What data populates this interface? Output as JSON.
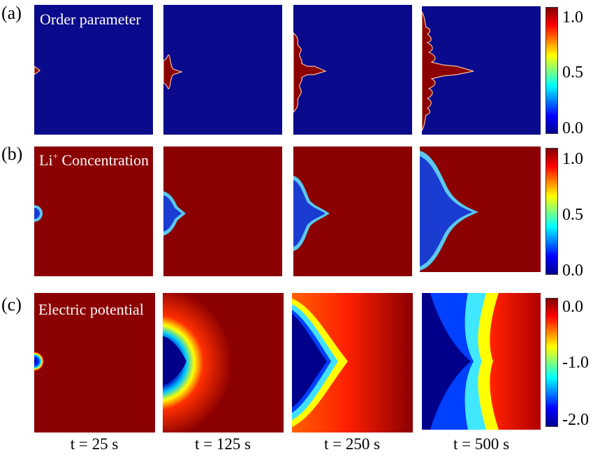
{
  "rows": [
    {
      "id": "a",
      "label": "(a)",
      "title": "Order parameter",
      "title_sup": "",
      "colorbar": {
        "ticks": [
          "1.0",
          "0.5",
          "0.0"
        ]
      }
    },
    {
      "id": "b",
      "label": "(b)",
      "title_main": "Li",
      "title_sup": "+",
      "title_rest": " Concentration",
      "colorbar": {
        "ticks": [
          "1.0",
          "0.5",
          "0.0"
        ]
      }
    },
    {
      "id": "c",
      "label": "(c)",
      "title": "Electric potential",
      "title_sup": "",
      "colorbar": {
        "ticks": [
          "0.0",
          "-1.0",
          "-2.0"
        ]
      }
    }
  ],
  "times": [
    "t = 25 s",
    "t = 125 s",
    "t = 250 s",
    "t = 500 s"
  ],
  "colormap": [
    "#00008f",
    "#0000ff",
    "#00ffff",
    "#ffff00",
    "#ff0000",
    "#800000"
  ]
}
